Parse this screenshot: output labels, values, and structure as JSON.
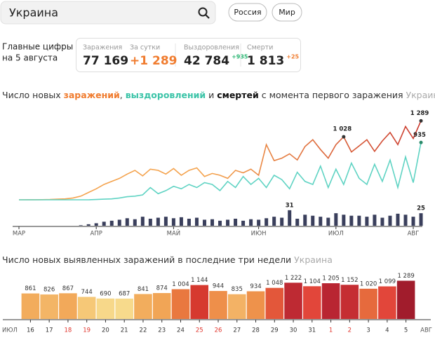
{
  "header": {
    "search": "Украина",
    "buttons": [
      "Россия",
      "Мир"
    ]
  },
  "summary": {
    "caption": [
      "Главные цифры",
      "на 5 августа"
    ],
    "items": [
      {
        "label": "Заражения",
        "value": "77 169",
        "color": "#222"
      },
      {
        "label": "За сутки",
        "value": "+1 289",
        "color": "#f07c2f"
      },
      {
        "label": "Выздоровления",
        "value": "42 784",
        "color": "#222",
        "delta": "+935",
        "delta_color": "#2bb673"
      },
      {
        "label": "Смерти",
        "value": "1 813",
        "color": "#222",
        "delta": "+25",
        "delta_color": "#f07c2f"
      }
    ]
  },
  "chart_data": [
    {
      "type": "line",
      "title_parts": [
        "Число новых ",
        "заражений",
        ", ",
        "выздоровлений",
        " и ",
        "смертей",
        " с момента первого заражения",
        " Украина"
      ],
      "title_colors": [
        "#333",
        "#f07c2f",
        "#333",
        "#3cc4a8",
        "#333",
        "#111",
        "#333",
        "#aaa"
      ],
      "title_bold": [
        false,
        true,
        false,
        true,
        false,
        true,
        false,
        false
      ],
      "categories": [
        "МАР",
        null,
        null,
        null,
        null,
        null,
        null,
        null,
        null,
        null,
        "АПР",
        null,
        null,
        null,
        null,
        null,
        null,
        null,
        null,
        null,
        "МАЙ",
        null,
        null,
        null,
        null,
        null,
        null,
        null,
        null,
        null,
        null,
        "ИЮН",
        null,
        null,
        null,
        null,
        null,
        null,
        null,
        null,
        null,
        "ИЮЛ",
        null,
        null,
        null,
        null,
        null,
        null,
        null,
        null,
        null,
        "АВГ",
        null
      ],
      "ylim": [
        0,
        1350
      ],
      "y2lim": [
        0,
        35
      ],
      "series": [
        {
          "name": "заражений",
          "color": "#f4a24c",
          "color_end": "#c9372c",
          "values": [
            0,
            1,
            1,
            2,
            5,
            10,
            15,
            30,
            60,
            120,
            180,
            250,
            300,
            350,
            420,
            480,
            390,
            500,
            480,
            420,
            510,
            400,
            480,
            520,
            380,
            430,
            400,
            350,
            480,
            440,
            500,
            400,
            900,
            640,
            680,
            750,
            650,
            870,
            980,
            820,
            680,
            900,
            1028,
            780,
            880,
            980,
            790,
            960,
            1100,
            900,
            1197,
            1000,
            1289
          ],
          "value_labels": [
            null,
            null,
            null,
            null,
            null,
            null,
            null,
            null,
            null,
            null,
            null,
            null,
            null,
            null,
            null,
            null,
            null,
            null,
            null,
            null,
            null,
            null,
            null,
            null,
            null,
            null,
            null,
            null,
            null,
            null,
            null,
            null,
            null,
            null,
            null,
            null,
            null,
            null,
            null,
            null,
            null,
            null,
            "1 028",
            null,
            null,
            null,
            null,
            null,
            null,
            null,
            null,
            null,
            "1 289"
          ]
        },
        {
          "name": "выздоровлений",
          "color": "#5fd3c3",
          "values": [
            0,
            0,
            0,
            0,
            0,
            0,
            0,
            0,
            0,
            0,
            5,
            10,
            15,
            30,
            50,
            60,
            80,
            200,
            100,
            150,
            220,
            180,
            250,
            200,
            280,
            250,
            150,
            300,
            200,
            380,
            250,
            350,
            200,
            400,
            330,
            180,
            450,
            300,
            250,
            550,
            200,
            500,
            250,
            600,
            350,
            250,
            580,
            300,
            650,
            200,
            700,
            280,
            935
          ],
          "value_labels": [
            null,
            null,
            null,
            null,
            null,
            null,
            null,
            null,
            null,
            null,
            null,
            null,
            null,
            null,
            null,
            null,
            null,
            null,
            null,
            null,
            null,
            null,
            null,
            null,
            null,
            null,
            null,
            null,
            null,
            null,
            null,
            null,
            null,
            null,
            null,
            null,
            null,
            null,
            null,
            null,
            null,
            null,
            null,
            null,
            null,
            null,
            null,
            null,
            null,
            null,
            null,
            null,
            "935"
          ]
        },
        {
          "name": "смертей",
          "color": "#3a3f5c",
          "axis": "y2",
          "values": [
            0,
            0,
            0,
            0,
            0,
            0,
            0,
            0,
            1,
            3,
            5,
            8,
            10,
            12,
            15,
            13,
            18,
            14,
            16,
            18,
            15,
            17,
            14,
            16,
            12,
            13,
            10,
            12,
            14,
            10,
            13,
            12,
            15,
            18,
            16,
            31,
            14,
            22,
            20,
            18,
            16,
            25,
            22,
            20,
            20,
            18,
            22,
            16,
            20,
            24,
            22,
            18,
            25
          ],
          "value_labels": [
            null,
            null,
            null,
            null,
            null,
            null,
            null,
            null,
            null,
            null,
            null,
            null,
            null,
            null,
            null,
            null,
            null,
            null,
            null,
            null,
            null,
            null,
            null,
            null,
            null,
            null,
            null,
            null,
            null,
            null,
            null,
            null,
            null,
            null,
            null,
            "31",
            null,
            null,
            null,
            null,
            null,
            null,
            null,
            null,
            null,
            null,
            null,
            null,
            null,
            null,
            null,
            null,
            "25"
          ]
        }
      ]
    },
    {
      "type": "bar",
      "title_parts": [
        "Число новых выявленных заражений в последние три недели",
        " Украина"
      ],
      "title_colors": [
        "#333",
        "#aaa"
      ],
      "x_start_label": "ИЮЛ",
      "x_end_label": "АВГ",
      "categories": [
        "16",
        "17",
        "18",
        "19",
        "20",
        "21",
        "22",
        "23",
        "24",
        "25",
        "26",
        "27",
        "28",
        "29",
        "30",
        "31",
        "1",
        "2",
        "3",
        "4",
        "5"
      ],
      "category_colors": [
        "#333",
        "#333",
        "#e0342c",
        "#e0342c",
        "#333",
        "#333",
        "#333",
        "#333",
        "#333",
        "#e0342c",
        "#e0342c",
        "#333",
        "#333",
        "#333",
        "#333",
        "#333",
        "#e0342c",
        "#e0342c",
        "#333",
        "#333",
        "#333"
      ],
      "values": [
        861,
        826,
        867,
        744,
        690,
        687,
        841,
        874,
        1004,
        1144,
        944,
        835,
        934,
        1048,
        1222,
        1104,
        1205,
        1152,
        1020,
        1099,
        1289
      ],
      "value_labels": [
        "861",
        "826",
        "867",
        "744",
        "690",
        "687",
        "841",
        "874",
        "1 004",
        "1 144",
        "944",
        "835",
        "934",
        "1 048",
        "1 222",
        "1 104",
        "1 205",
        "1 152",
        "1 020",
        "1 099",
        "1 289"
      ],
      "colors": [
        "#f2ac5c",
        "#f3b566",
        "#f2a95a",
        "#f6c877",
        "#f7d88a",
        "#f7da8c",
        "#f2ad5d",
        "#f1a556",
        "#e9783f",
        "#d6392f",
        "#ee8f4a",
        "#f3b265",
        "#ee924b",
        "#e3573a",
        "#be2a33",
        "#e2463a",
        "#b92532",
        "#c52e33",
        "#e66a3d",
        "#e2463a",
        "#a11c2c"
      ],
      "ylim": [
        0,
        1300
      ]
    }
  ]
}
